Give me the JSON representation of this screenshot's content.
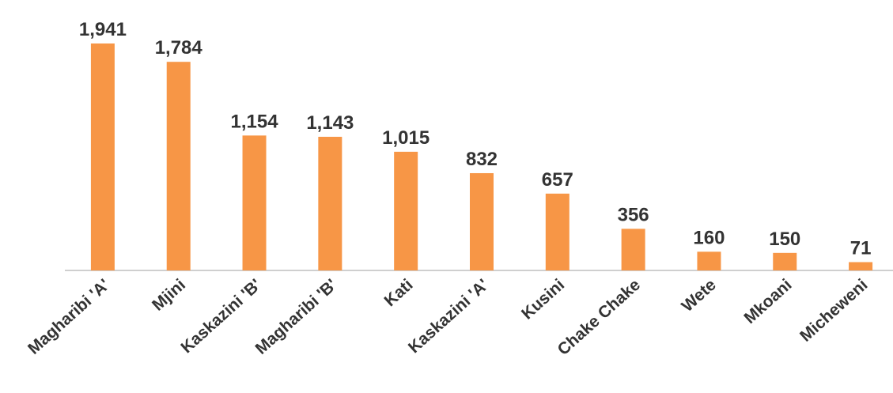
{
  "chart_data": {
    "type": "bar",
    "categories": [
      "Magharibi 'A'",
      "Mjini",
      "Kaskazini 'B'",
      "Magharibi 'B'",
      "Kati",
      "Kaskazini 'A'",
      "Kusini",
      "Chake Chake",
      "Wete",
      "Mkoani",
      "Micheweni"
    ],
    "values": [
      1941,
      1784,
      1154,
      1143,
      1015,
      832,
      657,
      356,
      160,
      150,
      71
    ],
    "value_labels": [
      "1,941",
      "1,784",
      "1,154",
      "1,143",
      "1,015",
      "832",
      "657",
      "356",
      "160",
      "150",
      "71"
    ],
    "color": "#f79646"
  }
}
